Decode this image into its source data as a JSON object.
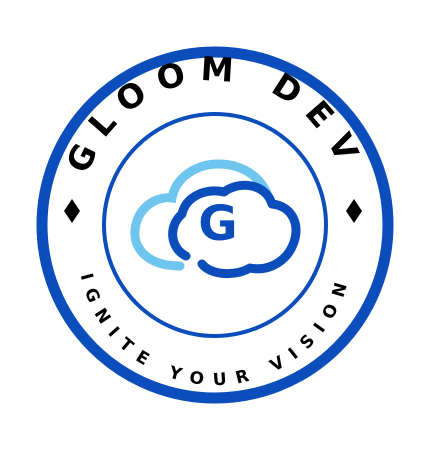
{
  "logo": {
    "brand_name": "GLOOM DEV",
    "tagline": "IGNITE YOUR VISION",
    "monogram": "G",
    "icons": {
      "cloud": "cloud-icon",
      "left_diamond": "diamond-icon",
      "right_diamond": "diamond-icon"
    },
    "colors": {
      "primary_blue": "#0a4dbb",
      "cloud_light_blue": "#6ec6ee",
      "cloud_dark_blue": "#0a4dbb",
      "text_black": "#000000",
      "background": "#ffffff"
    }
  }
}
